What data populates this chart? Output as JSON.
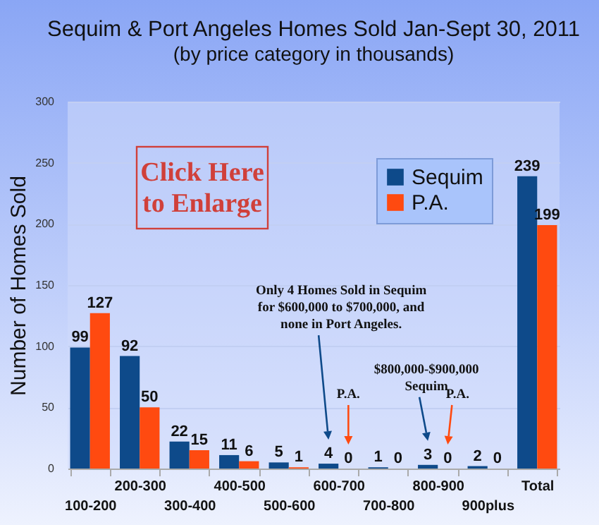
{
  "chart_data": {
    "type": "bar",
    "title": "Sequim & Port Angeles Homes Sold Jan-Sept 30, 2011",
    "subtitle": "(by price category in thousands)",
    "ylabel": "Number of Homes Sold",
    "categories": [
      "100-200",
      "200-300",
      "300-400",
      "400-500",
      "500-600",
      "600-700",
      "700-800",
      "800-900",
      "900plus",
      "Total"
    ],
    "series": [
      {
        "name": "Sequim",
        "color": "#0e4a8a",
        "values": [
          99,
          92,
          22,
          11,
          5,
          4,
          1,
          3,
          2,
          239
        ]
      },
      {
        "name": "P.A.",
        "color": "#ff4a10",
        "values": [
          127,
          50,
          15,
          6,
          1,
          0,
          0,
          0,
          0,
          199
        ]
      }
    ],
    "ylim": [
      0,
      300
    ],
    "yticks": [
      0,
      50,
      100,
      150,
      200,
      250,
      300
    ],
    "grid": "y",
    "legend": "top right",
    "data_labels": true,
    "annotations": [
      "Click Here\nto Enlarge",
      "Only 4 Homes Sold in Sequim\nfor $600,000 to $700,000, and\nnone in Port Angeles.",
      "P.A.",
      "$800,000-$900,000\nSequim",
      "P.A."
    ]
  }
}
